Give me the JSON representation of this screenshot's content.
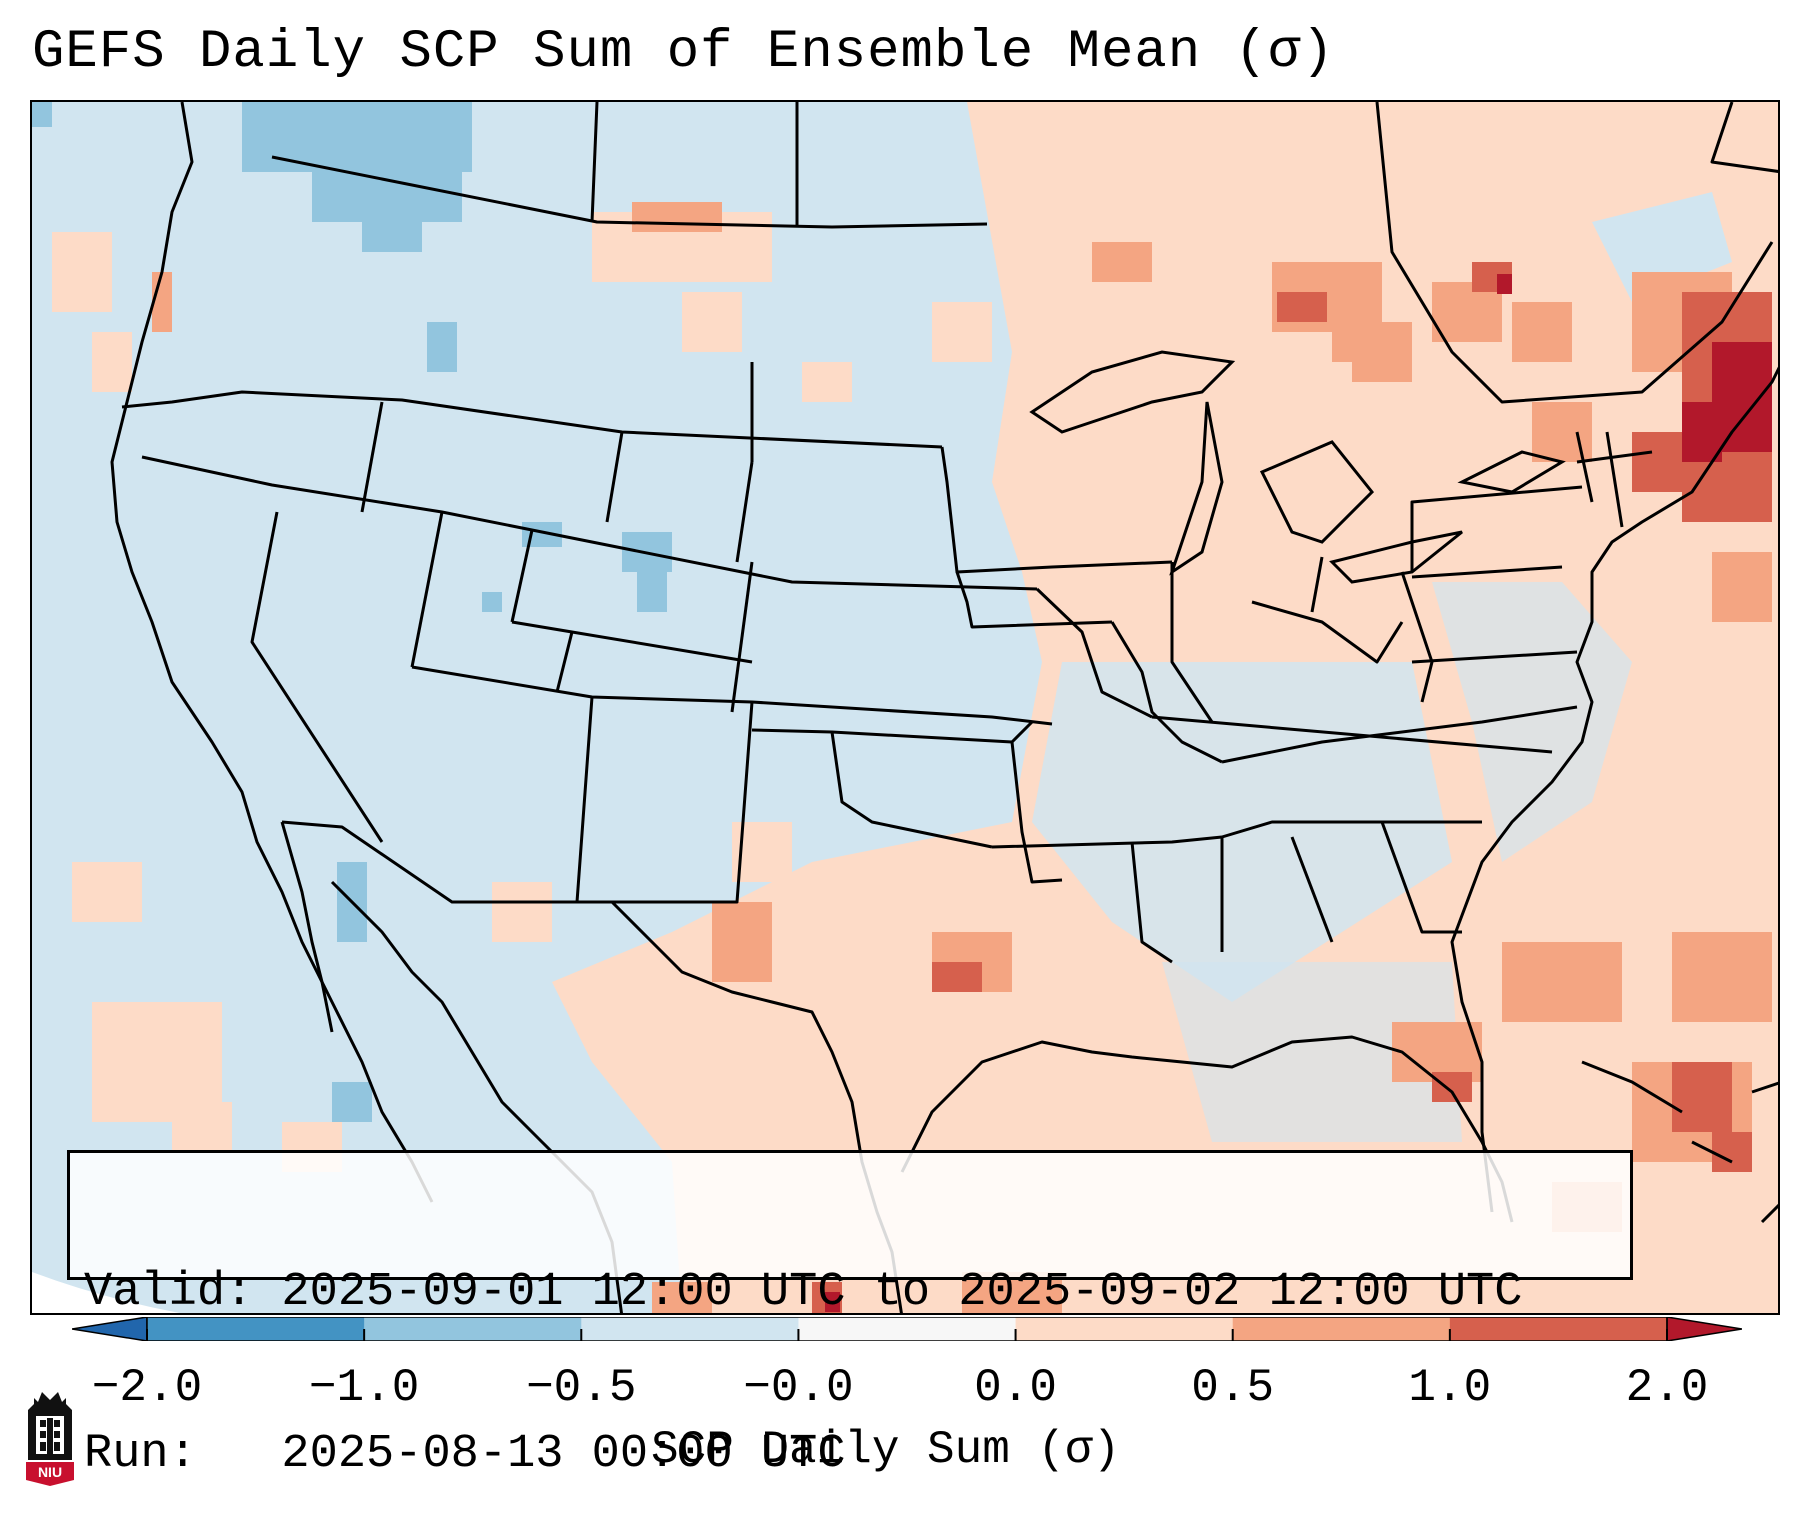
{
  "title": "GEFS Daily SCP Sum of Ensemble Mean (σ)",
  "info": {
    "valid_line": "Valid: 2025-09-01 12:00 UTC to 2025-09-02 12:00 UTC",
    "run_line": "Run:   2025-08-13 00:00 UTC"
  },
  "colorbar": {
    "label": "SCP Daily Sum (σ)",
    "ticks": [
      "−2.0",
      "−1.0",
      "−0.5",
      "−0.0",
      "0.0",
      "0.5",
      "1.0",
      "2.0"
    ],
    "colors": [
      "#4393c3",
      "#92c5de",
      "#d1e5f0",
      "#f7f7f7",
      "#fddbc7",
      "#f4a582",
      "#d6604d"
    ],
    "under_color": "#2166ac",
    "over_color": "#b2182b"
  },
  "map": {
    "background_color": "#d1e5f0",
    "features": [
      "state boundaries",
      "coastlines",
      "country borders",
      "Great Lakes"
    ],
    "highlight_regions": [
      {
        "area": "New England / Gulf of Maine",
        "category": "1.0 to 2.0+"
      },
      {
        "area": "Southern Quebec",
        "category": "0.5 to 1.0+"
      },
      {
        "area": "Bahamas",
        "category": "0.5 to 1.0"
      },
      {
        "area": "Texas Gulf coast",
        "category": "0.5 to 1.0"
      },
      {
        "area": "Pacific Northwest interior",
        "category": "-1.0 to -0.5"
      },
      {
        "area": "Colorado / Utah",
        "category": "-1.0 to -0.5"
      }
    ]
  },
  "logo": {
    "text": "NIU",
    "name": "Northern Illinois University"
  }
}
